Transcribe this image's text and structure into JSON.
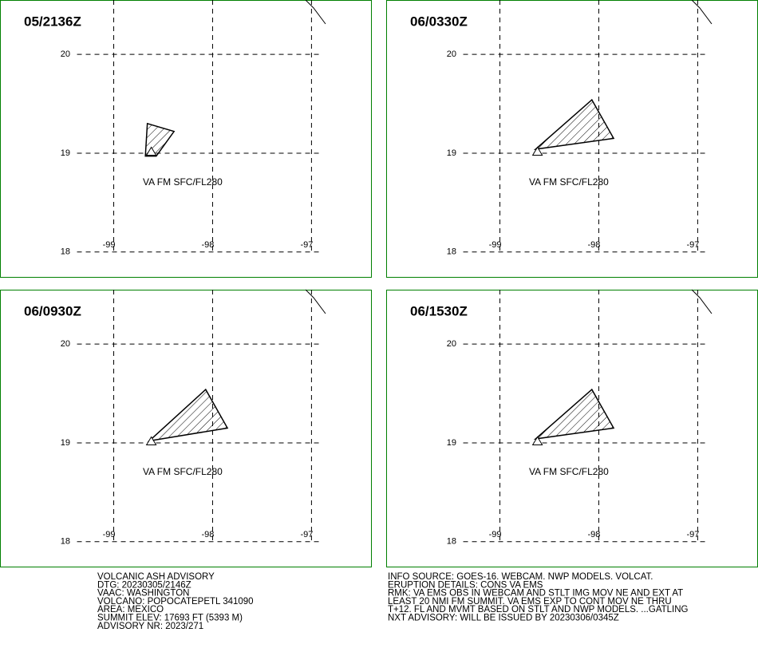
{
  "lon_lim": [
    -100.15,
    -96.39
  ],
  "lat_lim": [
    17.74,
    20.55
  ],
  "lon_ticks": [
    -99,
    -98,
    -97
  ],
  "lat_ticks": [
    18,
    19,
    20
  ],
  "volcano": {
    "lon": -98.62,
    "lat": 19.02
  },
  "panels": [
    {
      "title": "05/2136Z",
      "label": "VA FM SFC/FL280",
      "lon": [
        -98.66,
        -98.39,
        -98.57,
        -98.68
      ],
      "lat": [
        19.3,
        19.22,
        18.97,
        18.97
      ]
    },
    {
      "title": "06/0330Z",
      "label": "VA FM SFC/FL280",
      "lon": [
        -98.64,
        -98.07,
        -97.85
      ],
      "lat": [
        19.04,
        19.54,
        19.15
      ]
    },
    {
      "title": "06/0930Z",
      "label": "VA FM SFC/FL280",
      "lon": [
        -98.64,
        -98.07,
        -97.85
      ],
      "lat": [
        19.02,
        19.54,
        19.15
      ]
    },
    {
      "title": "06/1530Z",
      "label": "VA FM SFC/FL280",
      "lon": [
        -98.64,
        -98.07,
        -97.85
      ],
      "lat": [
        19.04,
        19.54,
        19.15
      ]
    }
  ],
  "advisory_left": [
    "VOLCANIC ASH ADVISORY",
    "DTG: 20230305/2146Z",
    "VAAC: WASHINGTON",
    "VOLCANO: POPOCATEPETL 341090",
    "AREA: MEXICO",
    "SUMMIT ELEV: 17693 FT (5393 M)",
    "ADVISORY NR: 2023/271"
  ],
  "advisory_right": [
    "INFO SOURCE: GOES-16. WEBCAM. NWP MODELS. VOLCAT.",
    "ERUPTION DETAILS: CONS VA EMS",
    "RMK: VA EMS OBS IN WEBCAM AND STLT IMG MOV NE AND EXT AT",
    "LEAST 20 NMI FM SUMMIT. VA EMS EXP TO CONT MOV NE THRU",
    "T+12. FL AND MVMT BASED ON STLT AND NWP MODELS. ...GATLING",
    "NXT ADVISORY: WILL BE ISSUED BY 20230306/0345Z"
  ]
}
